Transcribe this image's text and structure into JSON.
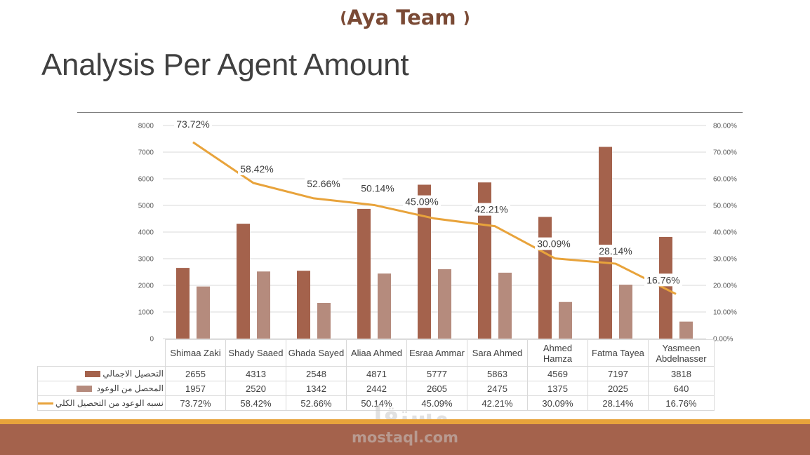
{
  "slide": {
    "team_open": "(",
    "team": "Aya Team",
    "team_close": ")",
    "title": "Analysis Per Agent Amount",
    "watermark_ar": "مستقل",
    "watermark": "mostaql.com"
  },
  "colors": {
    "total": "#a4624c",
    "promised": "#b58b7d",
    "ratio_line": "#e8a33b",
    "footer": "#a4624c",
    "footer_strip": "#e8a33b",
    "gridline": "#d9d9d9",
    "team_text": "#7a4a35"
  },
  "axes": {
    "left_ticks": [
      "0",
      "1000",
      "2000",
      "3000",
      "4000",
      "5000",
      "6000",
      "7000",
      "8000"
    ],
    "right_ticks": [
      "0.00%",
      "10.00%",
      "20.00%",
      "30.00%",
      "40.00%",
      "50.00%",
      "60.00%",
      "70.00%",
      "80.00%"
    ]
  },
  "legend": {
    "total": "التحصيل الاجمالي",
    "promised": "المحصل من الوعود",
    "ratio": "نسبه الوعود من التحصيل الكلي"
  },
  "table": {
    "categories": [
      "Shimaa Zaki",
      "Shady Saaed",
      "Ghada Sayed",
      "Aliaa Ahmed",
      "Esraa Ammar",
      "Sara Ahmed",
      "Ahmed Hamza",
      "Fatma Tayea",
      "Yasmeen Abdelnasser"
    ],
    "total": [
      "2655",
      "4313",
      "2548",
      "4871",
      "5777",
      "5863",
      "4569",
      "7197",
      "3818"
    ],
    "promised": [
      "1957",
      "2520",
      "1342",
      "2442",
      "2605",
      "2475",
      "1375",
      "2025",
      "640"
    ],
    "ratio": [
      "73.72%",
      "58.42%",
      "52.66%",
      "50.14%",
      "45.09%",
      "42.21%",
      "30.09%",
      "28.14%",
      "16.76%"
    ]
  },
  "chart_data": {
    "type": "bar",
    "title": "Analysis Per Agent Amount",
    "xlabel": "",
    "ylabel": "",
    "ylim": [
      0,
      8000
    ],
    "y2lim": [
      0,
      0.8
    ],
    "grid": true,
    "legend_position": "data-table",
    "categories": [
      "Shimaa Zaki",
      "Shady Saaed",
      "Ghada Sayed",
      "Aliaa Ahmed",
      "Esraa Ammar",
      "Sara Ahmed",
      "Ahmed Hamza",
      "Fatma Tayea",
      "Yasmeen Abdelnasser"
    ],
    "series": [
      {
        "name": "التحصيل الاجمالي",
        "type": "bar",
        "axis": "left",
        "values": [
          2655,
          4313,
          2548,
          4871,
          5777,
          5863,
          4569,
          7197,
          3818
        ]
      },
      {
        "name": "المحصل من الوعود",
        "type": "bar",
        "axis": "left",
        "values": [
          1957,
          2520,
          1342,
          2442,
          2605,
          2475,
          1375,
          2025,
          640
        ]
      },
      {
        "name": "نسبه الوعود من التحصيل الكلي",
        "type": "line",
        "axis": "right",
        "values": [
          0.7372,
          0.5842,
          0.5266,
          0.5014,
          0.4509,
          0.4221,
          0.3009,
          0.2814,
          0.1676
        ],
        "labels": [
          "73.72%",
          "58.42%",
          "52.66%",
          "50.14%",
          "45.09%",
          "42.21%",
          "30.09%",
          "28.14%",
          "16.76%"
        ]
      }
    ]
  }
}
